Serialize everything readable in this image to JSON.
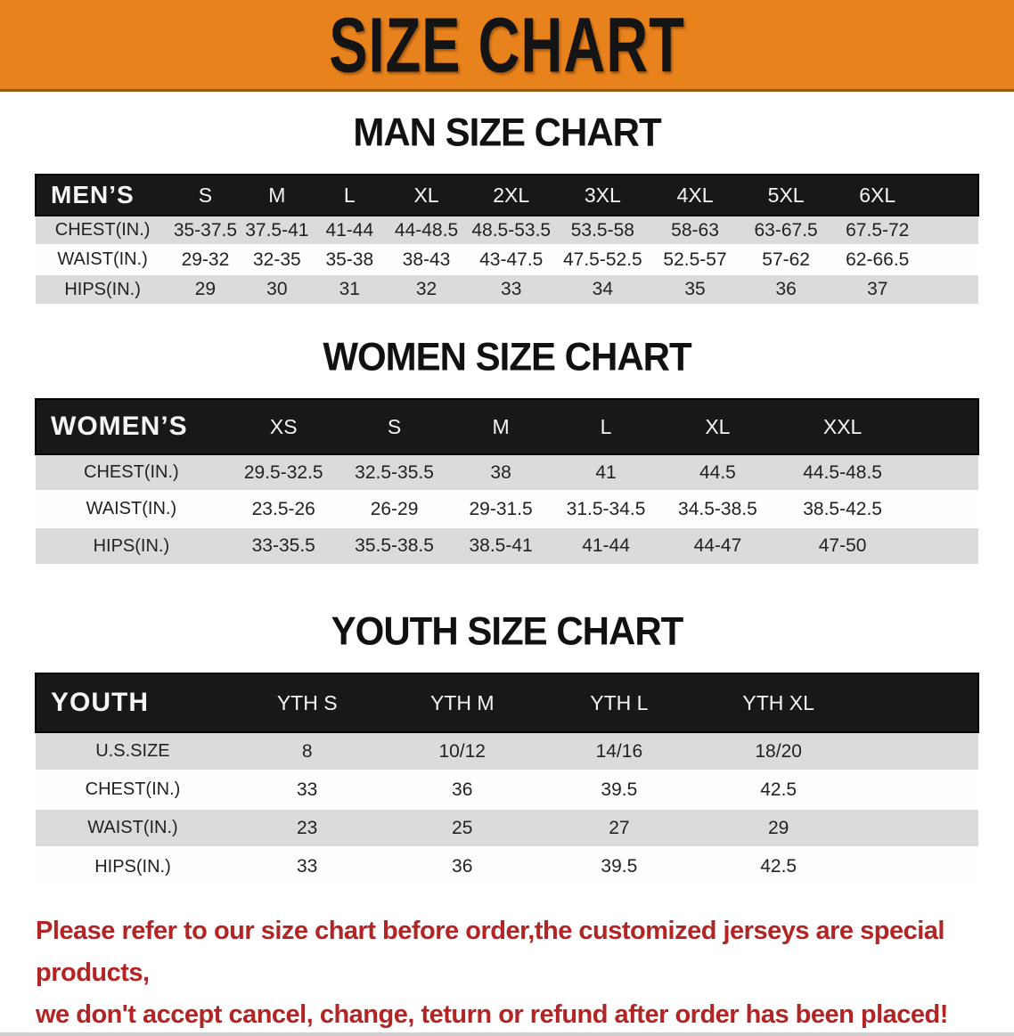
{
  "banner": {
    "title": "SIZE CHART",
    "bg_color": "#E8821C"
  },
  "sections": {
    "men": {
      "heading": "MAN SIZE CHART"
    },
    "women": {
      "heading": "WOMEN SIZE CHART"
    },
    "youth": {
      "heading": "YOUTH SIZE CHART"
    }
  },
  "tables": {
    "men": {
      "label": "MEN’S",
      "columns": [
        "S",
        "M",
        "L",
        "XL",
        "2XL",
        "3XL",
        "4XL",
        "5XL",
        "6XL"
      ],
      "rows": [
        {
          "label": "CHEST(IN.)",
          "values": [
            "35-37.5",
            "37.5-41",
            "41-44",
            "44-48.5",
            "48.5-53.5",
            "53.5-58",
            "58-63",
            "63-67.5",
            "67.5-72"
          ]
        },
        {
          "label": "WAIST(IN.)",
          "values": [
            "29-32",
            "32-35",
            "35-38",
            "38-43",
            "43-47.5",
            "47.5-52.5",
            "52.5-57",
            "57-62",
            "62-66.5"
          ]
        },
        {
          "label": "HIPS(IN.)",
          "values": [
            "29",
            "30",
            "31",
            "32",
            "33",
            "34",
            "35",
            "36",
            "37"
          ]
        }
      ]
    },
    "women": {
      "label": "WOMEN’S",
      "columns": [
        "XS",
        "S",
        "M",
        "L",
        "XL",
        "XXL"
      ],
      "rows": [
        {
          "label": "CHEST(IN.)",
          "values": [
            "29.5-32.5",
            "32.5-35.5",
            "38",
            "41",
            "44.5",
            "44.5-48.5"
          ]
        },
        {
          "label": "WAIST(IN.)",
          "values": [
            "23.5-26",
            "26-29",
            "29-31.5",
            "31.5-34.5",
            "34.5-38.5",
            "38.5-42.5"
          ]
        },
        {
          "label": "HIPS(IN.)",
          "values": [
            "33-35.5",
            "35.5-38.5",
            "38.5-41",
            "41-44",
            "44-47",
            "47-50"
          ]
        }
      ]
    },
    "youth": {
      "label": "YOUTH",
      "columns": [
        "YTH S",
        "YTH M",
        "YTH L",
        "YTH XL"
      ],
      "rows": [
        {
          "label": "U.S.SIZE",
          "values": [
            "8",
            "10/12",
            "14/16",
            "18/20"
          ]
        },
        {
          "label": "CHEST(IN.)",
          "values": [
            "33",
            "36",
            "39.5",
            "42.5"
          ]
        },
        {
          "label": "WAIST(IN.)",
          "values": [
            "23",
            "25",
            "27",
            "29"
          ]
        },
        {
          "label": "HIPS(IN.)",
          "values": [
            "33",
            "36",
            "39.5",
            "42.5"
          ]
        }
      ]
    }
  },
  "disclaimer": {
    "line1": "Please refer to our size chart before order,the customized jerseys are special products,",
    "line2": "we don't accept cancel, change, teturn or refund after order has been placed!",
    "color": "#B32424"
  }
}
